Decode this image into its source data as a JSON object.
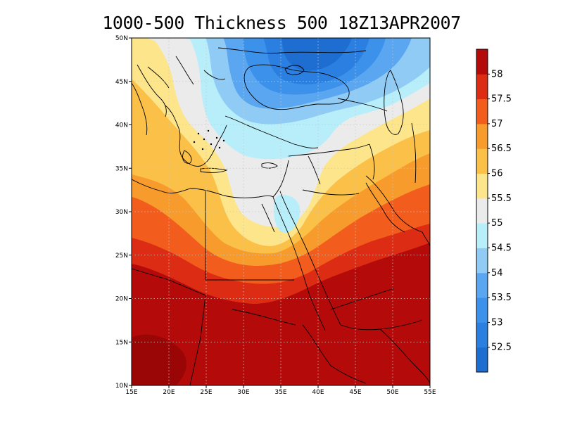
{
  "title": "1000-500 Thickness 500 18Z13APR2007",
  "lon_labels": [
    "15E",
    "20E",
    "25E",
    "30E",
    "35E",
    "40E",
    "45E",
    "50E",
    "55E"
  ],
  "lat_labels": [
    "10N",
    "15N",
    "20N",
    "25N",
    "30N",
    "35N",
    "40N",
    "45N",
    "50N"
  ],
  "map_extent": {
    "lon": [
      15,
      55
    ],
    "lat": [
      10,
      50
    ]
  },
  "colorbar": {
    "levels": [
      52.5,
      53,
      53.5,
      54,
      54.5,
      55,
      55.5,
      56,
      56.5,
      57,
      57.5,
      58
    ],
    "colors": [
      "#1e6ed2",
      "#2a7fe0",
      "#3c91ea",
      "#5aa6f0",
      "#8fcbf5",
      "#b8eefa",
      "#ebebeb",
      "#fde58c",
      "#fbc048",
      "#f69b2c",
      "#f25c1c",
      "#dc2d14",
      "#b40a0a"
    ]
  }
}
